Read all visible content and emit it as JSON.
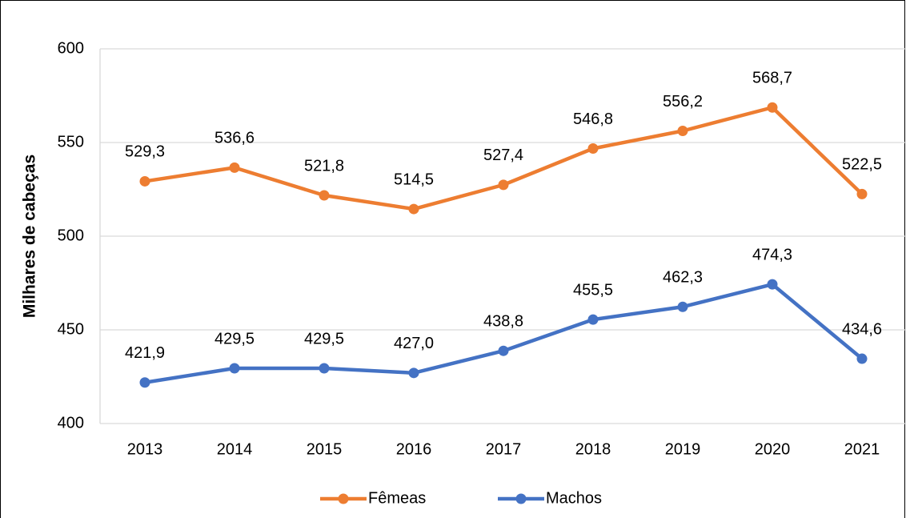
{
  "chart_data": {
    "type": "line",
    "y_label": "Milhares de cabeças",
    "categories": [
      "2013",
      "2014",
      "2015",
      "2016",
      "2017",
      "2018",
      "2019",
      "2020",
      "2021"
    ],
    "series": [
      {
        "name": "Fêmeas",
        "color": "#ed7d31",
        "values": [
          529.3,
          536.6,
          521.8,
          514.5,
          527.4,
          546.8,
          556.2,
          568.7,
          522.5
        ],
        "value_labels": [
          "529,3",
          "536,6",
          "521,8",
          "514,5",
          "527,4",
          "546,8",
          "556,2",
          "568,7",
          "522,5"
        ]
      },
      {
        "name": "Machos",
        "color": "#4472c4",
        "values": [
          421.9,
          429.5,
          429.5,
          427.0,
          438.8,
          455.5,
          462.3,
          474.3,
          434.6
        ],
        "value_labels": [
          "421,9",
          "429,5",
          "429,5",
          "427,0",
          "438,8",
          "455,5",
          "462,3",
          "474,3",
          "434,6"
        ]
      }
    ],
    "ylim": [
      400,
      600
    ],
    "yticks": [
      400,
      450,
      500,
      550,
      600
    ],
    "grid": true,
    "legend": "bottom"
  }
}
